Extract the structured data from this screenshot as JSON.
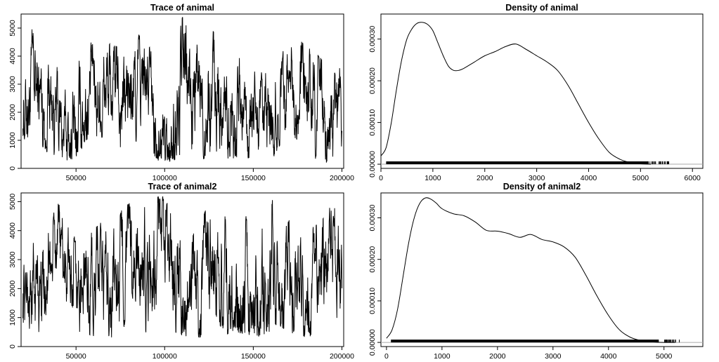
{
  "chart_data": [
    {
      "type": "line",
      "title": "Trace of animal",
      "xlabel": "",
      "ylabel": "",
      "xlim": [
        19000,
        201000
      ],
      "ylim": [
        0,
        5500
      ],
      "xticks": [
        50000,
        100000,
        150000,
        200000
      ],
      "yticks": [
        0,
        1000,
        2000,
        3000,
        4000,
        5000
      ],
      "xtick_labels": [
        "50000",
        "100000",
        "150000",
        "200000"
      ],
      "ytick_labels": [
        "0",
        "1000",
        "2000",
        "3000",
        "4000",
        "5000"
      ],
      "x": [
        20000,
        25000,
        30000,
        35000,
        40000,
        45000,
        50000,
        55000,
        60000,
        65000,
        70000,
        75000,
        80000,
        85000,
        90000,
        95000,
        100000,
        105000,
        110000,
        115000,
        120000,
        125000,
        130000,
        135000,
        140000,
        145000,
        150000,
        155000,
        160000,
        165000,
        170000,
        175000,
        180000,
        185000,
        190000,
        195000,
        200000
      ],
      "y": [
        2500,
        2800,
        2200,
        2700,
        1400,
        700,
        1000,
        2600,
        2900,
        3000,
        2800,
        2500,
        2300,
        2600,
        3000,
        1200,
        700,
        1000,
        3100,
        2400,
        2200,
        2600,
        2900,
        2300,
        2100,
        2400,
        1600,
        700,
        1400,
        2800,
        3200,
        3000,
        2600,
        2400,
        1200,
        900,
        2400
      ],
      "y_min_band": [
        900,
        1200,
        500,
        600,
        300,
        250,
        300,
        900,
        1100,
        700,
        800,
        400,
        300,
        250,
        800,
        300,
        200,
        250,
        500,
        300,
        250,
        400,
        600,
        300,
        350,
        300,
        400,
        150,
        200,
        800,
        1400,
        900,
        600,
        300,
        200,
        150,
        500
      ],
      "y_max_band": [
        4900,
        5100,
        4800,
        4400,
        3600,
        3300,
        4100,
        4600,
        4500,
        4700,
        4500,
        4300,
        4200,
        4800,
        4600,
        3700,
        3000,
        4300,
        5500,
        4700,
        4500,
        4900,
        5000,
        4400,
        4300,
        4700,
        4000,
        3500,
        4200,
        4700,
        4400,
        4600,
        4500,
        4300,
        3800,
        3500,
        3900
      ]
    },
    {
      "type": "area",
      "title": "Density of animal",
      "xlabel": "",
      "ylabel": "",
      "xlim": [
        0,
        6200
      ],
      "ylim": [
        -1e-05,
        0.00036
      ],
      "xticks": [
        0,
        1000,
        2000,
        3000,
        4000,
        5000,
        6000
      ],
      "yticks": [
        0,
        0.0001,
        0.0002,
        0.0003
      ],
      "xtick_labels": [
        "0",
        "1000",
        "2000",
        "3000",
        "4000",
        "5000",
        "6000"
      ],
      "ytick_labels": [
        "0.00000",
        "0.00010",
        "0.00020",
        "0.00030"
      ],
      "x": [
        0,
        100,
        200,
        300,
        400,
        500,
        600,
        700,
        800,
        900,
        1000,
        1100,
        1200,
        1300,
        1400,
        1500,
        1600,
        1800,
        2000,
        2200,
        2400,
        2600,
        2800,
        3000,
        3200,
        3400,
        3600,
        3800,
        4000,
        4200,
        4400,
        4600,
        4800,
        5000,
        5200
      ],
      "y": [
        2e-05,
        4e-05,
        0.0001,
        0.00018,
        0.00025,
        0.0003,
        0.000325,
        0.000338,
        0.00034,
        0.000335,
        0.00032,
        0.00029,
        0.00026,
        0.000235,
        0.000225,
        0.000225,
        0.00023,
        0.000245,
        0.00026,
        0.00027,
        0.000282,
        0.000288,
        0.000275,
        0.00026,
        0.000245,
        0.000225,
        0.00019,
        0.000145,
        0.0001,
        6e-05,
        2.8e-05,
        1.2e-05,
        4e-06,
        1e-06,
        0.0
      ],
      "rug_range": [
        100,
        5550
      ]
    },
    {
      "type": "line",
      "title": "Trace of animal2",
      "xlabel": "",
      "ylabel": "",
      "xlim": [
        19000,
        201000
      ],
      "ylim": [
        0,
        5300
      ],
      "xticks": [
        50000,
        100000,
        150000,
        200000
      ],
      "yticks": [
        0,
        1000,
        2000,
        3000,
        4000,
        5000
      ],
      "xtick_labels": [
        "50000",
        "100000",
        "150000",
        "200000"
      ],
      "ytick_labels": [
        "0",
        "1000",
        "2000",
        "3000",
        "4000",
        "5000"
      ],
      "x": [
        20000,
        25000,
        30000,
        35000,
        40000,
        45000,
        50000,
        55000,
        60000,
        65000,
        70000,
        75000,
        80000,
        85000,
        90000,
        95000,
        100000,
        105000,
        110000,
        115000,
        120000,
        125000,
        130000,
        135000,
        140000,
        145000,
        150000,
        155000,
        160000,
        165000,
        170000,
        175000,
        180000,
        185000,
        190000,
        195000,
        200000
      ],
      "y": [
        2000,
        1800,
        2200,
        3000,
        3400,
        2500,
        1800,
        2200,
        1800,
        2500,
        1900,
        2600,
        3000,
        2200,
        2800,
        3200,
        3600,
        2600,
        2200,
        1600,
        2200,
        2600,
        2500,
        2400,
        2600,
        2600,
        2200,
        2000,
        2600,
        2800,
        2300,
        2200,
        1800,
        2000,
        2600,
        3000,
        2400
      ],
      "y_min_band": [
        400,
        300,
        400,
        1500,
        1700,
        500,
        300,
        500,
        200,
        400,
        300,
        500,
        900,
        300,
        400,
        800,
        1000,
        300,
        400,
        200,
        300,
        500,
        700,
        400,
        500,
        400,
        400,
        300,
        500,
        700,
        400,
        300,
        300,
        200,
        700,
        1000,
        800
      ],
      "y_max_band": [
        4200,
        3800,
        4300,
        4700,
        5000,
        4300,
        3700,
        4500,
        4000,
        4600,
        4000,
        4700,
        5000,
        4200,
        5100,
        5200,
        5200,
        4700,
        4500,
        4000,
        4400,
        4900,
        4700,
        4500,
        4800,
        4600,
        4300,
        4300,
        5100,
        5200,
        4400,
        4200,
        3900,
        4300,
        4700,
        5000,
        4600
      ]
    },
    {
      "type": "area",
      "title": "Density of animal2",
      "xlabel": "",
      "ylabel": "",
      "xlim": [
        -100,
        5700
      ],
      "ylim": [
        -1e-05,
        0.00036
      ],
      "xticks": [
        0,
        1000,
        2000,
        3000,
        4000,
        5000
      ],
      "yticks": [
        0,
        0.0001,
        0.0002,
        0.0003
      ],
      "xtick_labels": [
        "0",
        "1000",
        "2000",
        "3000",
        "4000",
        "5000"
      ],
      "ytick_labels": [
        "0.00000",
        "0.00010",
        "0.00020",
        "0.00030"
      ],
      "x": [
        0,
        100,
        200,
        300,
        400,
        500,
        600,
        700,
        800,
        900,
        1000,
        1200,
        1400,
        1600,
        1800,
        2000,
        2200,
        2400,
        2600,
        2800,
        3000,
        3200,
        3400,
        3600,
        3800,
        4000,
        4200,
        4400,
        4600,
        4800,
        5000,
        5200
      ],
      "y": [
        1e-05,
        3e-05,
        8e-05,
        0.00016,
        0.00024,
        0.0003,
        0.000335,
        0.000348,
        0.000345,
        0.000335,
        0.000322,
        0.00031,
        0.000305,
        0.00029,
        0.00027,
        0.000268,
        0.000262,
        0.000253,
        0.00026,
        0.000248,
        0.000242,
        0.00023,
        0.000205,
        0.00016,
        0.00011,
        6.5e-05,
        3e-05,
        1.2e-05,
        4e-06,
        1e-06,
        0.0,
        0.0
      ],
      "rug_range": [
        80,
        5300
      ]
    }
  ]
}
